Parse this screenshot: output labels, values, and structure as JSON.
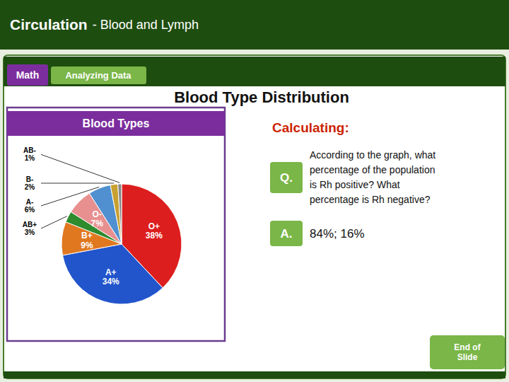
{
  "chart_data": {
    "type": "pie",
    "title": "Blood Types",
    "categories": [
      "O+",
      "A+",
      "B+",
      "AB+",
      "O-",
      "A-",
      "B-",
      "AB-"
    ],
    "values": [
      38,
      34,
      9,
      3,
      7,
      6,
      2,
      1
    ],
    "value_labels": [
      "38%",
      "34%",
      "9%",
      "3%",
      "7%",
      "6%",
      "2%",
      "1%"
    ],
    "colors": [
      "#dd1e1e",
      "#2255cc",
      "#e07820",
      "#2e8b2e",
      "#e89090",
      "#5090d0",
      "#c8a030",
      "#888888"
    ],
    "data_labels": true
  },
  "header": [
    "Circulation",
    "- Blood and Lymph"
  ],
  "tabs": [
    "Math",
    "Analyzing Data"
  ],
  "title": "Blood Type Distribution",
  "calculating_label": "Calculating:",
  "question_label": "Q.",
  "question_text": "According to the graph, what\npercentage of the population\nis Rh positive? What\npercentage is Rh negative?",
  "answer_label": "A.",
  "answer_text": "84%; 16%",
  "end_slide_text": "End of\nSlide"
}
